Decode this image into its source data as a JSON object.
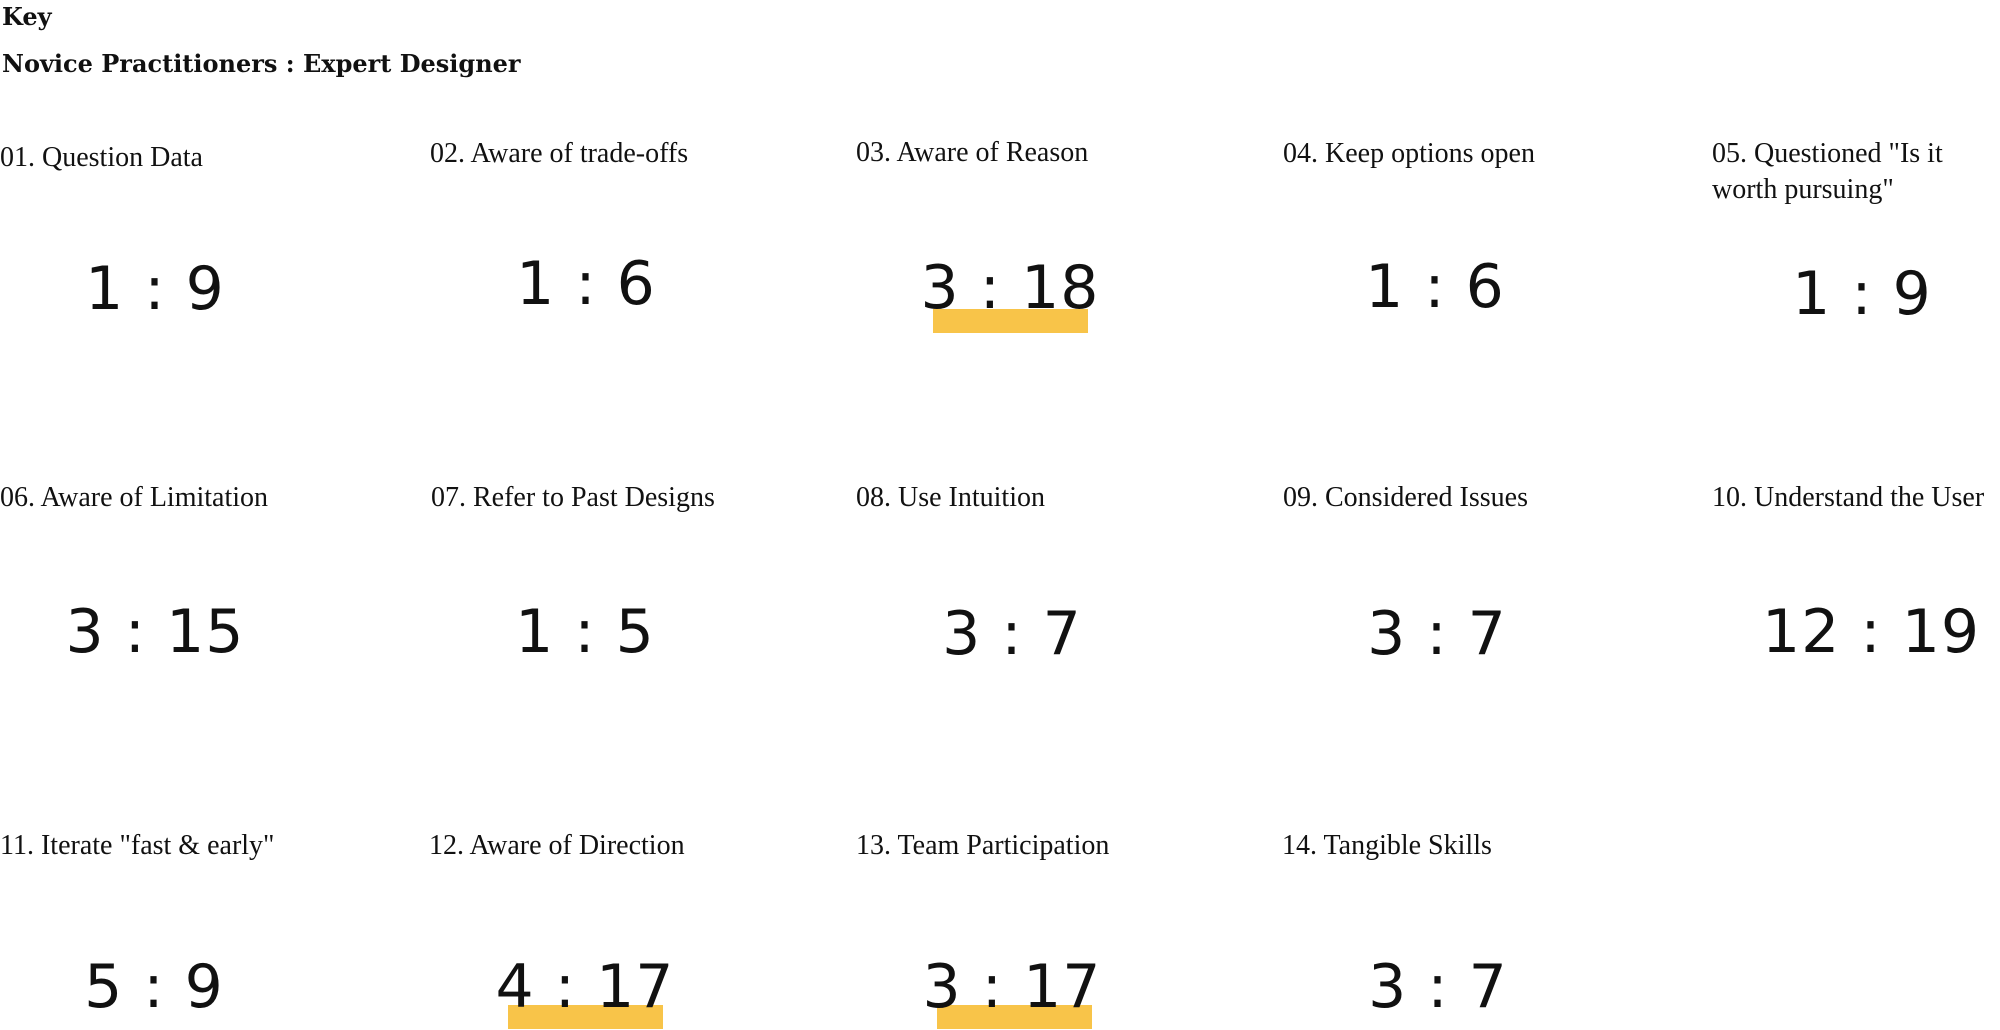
{
  "key": {
    "title": "Key",
    "legend": "Novice Practitioners : Expert Designer"
  },
  "items": [
    {
      "label": "01. Question Data",
      "ratio": "1 : 9",
      "highlighted": false
    },
    {
      "label": "02. Aware of trade-offs",
      "ratio": "1 : 6",
      "highlighted": false
    },
    {
      "label": "03. Aware of Reason",
      "ratio": "3 : 18",
      "highlighted": true
    },
    {
      "label": "04. Keep options open",
      "ratio": "1 : 6",
      "highlighted": false
    },
    {
      "label": "05. Questioned \"Is it worth pursuing\"",
      "ratio": "1 : 9",
      "highlighted": false
    },
    {
      "label": "06. Aware of Limitation",
      "ratio": "3 : 15",
      "highlighted": false
    },
    {
      "label": "07. Refer to Past Designs",
      "ratio": "1 : 5",
      "highlighted": false
    },
    {
      "label": "08. Use Intuition",
      "ratio": "3 : 7",
      "highlighted": false
    },
    {
      "label": "09. Considered Issues",
      "ratio": "3 : 7",
      "highlighted": false
    },
    {
      "label": "10. Understand the User",
      "ratio": "12 : 19",
      "highlighted": false
    },
    {
      "label": "11. Iterate \"fast & early\"",
      "ratio": "5 : 9",
      "highlighted": false
    },
    {
      "label": "12. Aware of Direction",
      "ratio": "4 : 17",
      "highlighted": true
    },
    {
      "label": "13. Team Participation",
      "ratio": "3 : 17",
      "highlighted": true
    },
    {
      "label": "14. Tangible Skills",
      "ratio": "3 : 7",
      "highlighted": false
    }
  ],
  "colors": {
    "highlight": "#f8c449",
    "text": "#111111",
    "background": "#ffffff"
  }
}
